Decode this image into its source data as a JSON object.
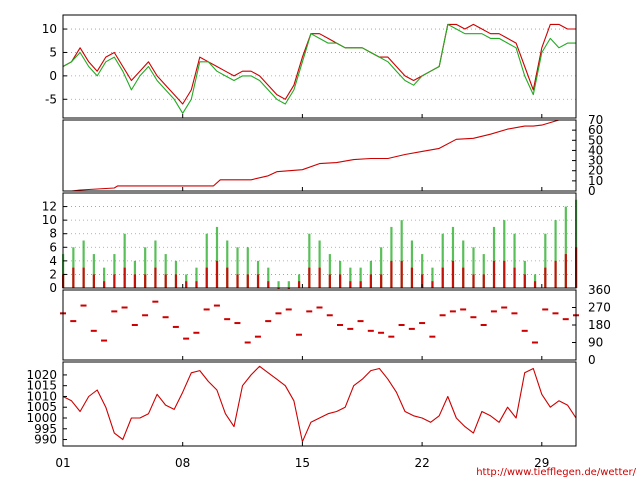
{
  "credit": "http://www.tiefflegen.de/wetter/",
  "x_axis": {
    "min": 1,
    "max": 31,
    "ticks": [
      {
        "value": 1,
        "label": "01"
      },
      {
        "value": 8,
        "label": "08"
      },
      {
        "value": 15,
        "label": "15"
      },
      {
        "value": 22,
        "label": "22"
      },
      {
        "value": 29,
        "label": "29"
      }
    ]
  },
  "colors": {
    "red": "#cc0000",
    "green": "#22aa22"
  },
  "chart_data": [
    {
      "type": "line",
      "panel": "temperature",
      "ylim": [
        -9,
        13
      ],
      "yticks": [
        -5,
        0,
        5,
        10
      ],
      "tick_side": "left",
      "grid": true,
      "series": [
        {
          "color": "red",
          "x": [
            1.0,
            1.5,
            2.0,
            2.5,
            3.0,
            3.5,
            4.0,
            4.5,
            5.0,
            5.5,
            6.0,
            6.5,
            7.0,
            7.5,
            8.0,
            8.5,
            9.0,
            9.5,
            10.0,
            10.5,
            11.0,
            11.5,
            12.0,
            12.5,
            13.0,
            13.5,
            14.0,
            14.5,
            15.0,
            15.5,
            16.0,
            16.5,
            17.0,
            17.5,
            18.0,
            18.5,
            19.0,
            19.5,
            20.0,
            20.5,
            21.0,
            21.5,
            22.0,
            22.5,
            23.0,
            23.5,
            24.0,
            24.5,
            25.0,
            25.5,
            26.0,
            26.5,
            27.0,
            27.5,
            28.0,
            28.5,
            29.0,
            29.5,
            30.0,
            30.5,
            31.0
          ],
          "y": [
            2,
            3,
            6,
            3,
            1,
            4,
            5,
            2,
            -1,
            1,
            3,
            0,
            -2,
            -4,
            -6,
            -3,
            4,
            3,
            2,
            1,
            0,
            1,
            1,
            0,
            -2,
            -4,
            -5,
            -2,
            4,
            9,
            9,
            8,
            7,
            6,
            6,
            6,
            5,
            4,
            4,
            2,
            0,
            -1,
            0,
            1,
            2,
            11,
            11,
            10,
            11,
            10,
            9,
            9,
            8,
            7,
            2,
            -3,
            6,
            11,
            11,
            10,
            10
          ]
        },
        {
          "color": "green",
          "x": [
            1.0,
            1.5,
            2.0,
            2.5,
            3.0,
            3.5,
            4.0,
            4.5,
            5.0,
            5.5,
            6.0,
            6.5,
            7.0,
            7.5,
            8.0,
            8.5,
            9.0,
            9.5,
            10.0,
            10.5,
            11.0,
            11.5,
            12.0,
            12.5,
            13.0,
            13.5,
            14.0,
            14.5,
            15.0,
            15.5,
            16.0,
            16.5,
            17.0,
            17.5,
            18.0,
            18.5,
            19.0,
            19.5,
            20.0,
            20.5,
            21.0,
            21.5,
            22.0,
            22.5,
            23.0,
            23.5,
            24.0,
            24.5,
            25.0,
            25.5,
            26.0,
            26.5,
            27.0,
            27.5,
            28.0,
            28.5,
            29.0,
            29.5,
            30.0,
            30.5,
            31.0
          ],
          "y": [
            2,
            3,
            5,
            2,
            0,
            3,
            4,
            1,
            -3,
            0,
            2,
            -1,
            -3,
            -5,
            -8,
            -5,
            3,
            3,
            1,
            0,
            -1,
            0,
            0,
            -1,
            -3,
            -5,
            -6,
            -3,
            3,
            9,
            8,
            7,
            7,
            6,
            6,
            6,
            5,
            4,
            3,
            1,
            -1,
            -2,
            0,
            1,
            2,
            11,
            10,
            9,
            9,
            9,
            8,
            8,
            7,
            6,
            0,
            -4,
            5,
            8,
            6,
            7,
            7
          ]
        }
      ]
    },
    {
      "type": "line",
      "panel": "precipitation-cumulative",
      "ylim": [
        0,
        70
      ],
      "yticks": [
        0,
        10,
        20,
        30,
        40,
        50,
        60,
        70
      ],
      "tick_side": "right",
      "grid": false,
      "series": [
        {
          "color": "red",
          "x": [
            1.0,
            1.5,
            2.0,
            3.0,
            4.0,
            4.2,
            6.0,
            8.0,
            9.0,
            9.8,
            10.2,
            12.0,
            13.0,
            13.5,
            15.0,
            16.0,
            17.0,
            18.0,
            19.0,
            20.0,
            21.0,
            22.0,
            23.0,
            24.0,
            25.0,
            26.0,
            27.0,
            28.0,
            28.5,
            29.0,
            30.0,
            31.0
          ],
          "y": [
            0,
            0,
            1,
            2,
            3,
            5,
            5,
            5,
            5,
            5,
            11,
            11,
            15,
            19,
            21,
            27,
            28,
            31,
            32,
            32,
            36,
            39,
            42,
            51,
            52,
            56,
            61,
            64,
            64,
            65,
            70,
            70
          ]
        }
      ]
    },
    {
      "type": "scatter",
      "panel": "wind-speed",
      "ylim": [
        0,
        14
      ],
      "yticks": [
        0,
        2,
        4,
        6,
        8,
        10,
        12
      ],
      "tick_side": "left",
      "grid": true,
      "series": [
        {
          "color": "green",
          "x": [
            1.0,
            1.6,
            2.2,
            2.8,
            3.4,
            4.0,
            4.6,
            5.2,
            5.8,
            6.4,
            7.0,
            7.6,
            8.2,
            8.8,
            9.4,
            10.0,
            10.6,
            11.2,
            11.8,
            12.4,
            13.0,
            13.6,
            14.2,
            14.8,
            15.4,
            16.0,
            16.6,
            17.2,
            17.8,
            18.4,
            19.0,
            19.6,
            20.2,
            20.8,
            21.4,
            22.0,
            22.6,
            23.2,
            23.8,
            24.4,
            25.0,
            25.6,
            26.2,
            26.8,
            27.4,
            28.0,
            28.6,
            29.2,
            29.8,
            30.4,
            31.0
          ],
          "y": [
            5,
            6,
            7,
            5,
            3,
            5,
            8,
            4,
            6,
            7,
            5,
            4,
            2,
            3,
            8,
            9,
            7,
            6,
            6,
            4,
            3,
            1,
            1,
            2,
            8,
            7,
            5,
            4,
            3,
            3,
            4,
            6,
            9,
            10,
            7,
            5,
            3,
            8,
            9,
            7,
            6,
            5,
            9,
            10,
            8,
            4,
            2,
            8,
            10,
            12,
            13
          ]
        },
        {
          "color": "red",
          "x": [
            1.0,
            1.6,
            2.2,
            2.8,
            3.4,
            4.0,
            4.6,
            5.2,
            5.8,
            6.4,
            7.0,
            7.6,
            8.2,
            8.8,
            9.4,
            10.0,
            10.6,
            11.2,
            11.8,
            12.4,
            13.0,
            13.6,
            14.2,
            14.8,
            15.4,
            16.0,
            16.6,
            17.2,
            17.8,
            18.4,
            19.0,
            19.6,
            20.2,
            20.8,
            21.4,
            22.0,
            22.6,
            23.2,
            23.8,
            24.4,
            25.0,
            25.6,
            26.2,
            26.8,
            27.4,
            28.0,
            28.6,
            29.2,
            29.8,
            30.4,
            31.0
          ],
          "y": [
            2,
            3,
            3,
            2,
            1,
            2,
            3,
            2,
            2,
            3,
            2,
            2,
            1,
            1,
            3,
            4,
            3,
            2,
            2,
            2,
            1,
            0,
            0,
            1,
            3,
            3,
            2,
            2,
            1,
            1,
            2,
            2,
            4,
            4,
            3,
            2,
            1,
            3,
            4,
            3,
            2,
            2,
            4,
            4,
            3,
            2,
            1,
            3,
            4,
            5,
            6
          ]
        }
      ]
    },
    {
      "type": "scatter",
      "panel": "wind-direction",
      "ylim": [
        0,
        360
      ],
      "yticks": [
        0,
        90,
        180,
        270,
        360
      ],
      "tick_side": "right",
      "grid": false,
      "series": [
        {
          "color": "red",
          "x": [
            1.0,
            1.6,
            2.2,
            2.8,
            3.4,
            4.0,
            4.6,
            5.2,
            5.8,
            6.4,
            7.0,
            7.6,
            8.2,
            8.8,
            9.4,
            10.0,
            10.6,
            11.2,
            11.8,
            12.4,
            13.0,
            13.6,
            14.2,
            14.8,
            15.4,
            16.0,
            16.6,
            17.2,
            17.8,
            18.4,
            19.0,
            19.6,
            20.2,
            20.8,
            21.4,
            22.0,
            22.6,
            23.2,
            23.8,
            24.4,
            25.0,
            25.6,
            26.2,
            26.8,
            27.4,
            28.0,
            28.6,
            29.2,
            29.8,
            30.4,
            31.0
          ],
          "y": [
            240,
            200,
            280,
            150,
            100,
            250,
            270,
            180,
            230,
            300,
            220,
            170,
            110,
            140,
            260,
            280,
            210,
            190,
            90,
            120,
            200,
            240,
            260,
            130,
            250,
            270,
            230,
            180,
            160,
            200,
            150,
            140,
            120,
            180,
            160,
            190,
            120,
            230,
            250,
            260,
            220,
            180,
            250,
            270,
            240,
            150,
            90,
            260,
            240,
            210,
            230
          ]
        }
      ]
    },
    {
      "type": "line",
      "panel": "pressure",
      "ylim": [
        987,
        1026
      ],
      "yticks": [
        990,
        995,
        1000,
        1005,
        1010,
        1015,
        1020
      ],
      "tick_side": "left",
      "grid": false,
      "series": [
        {
          "color": "red",
          "x": [
            1.0,
            1.5,
            2.0,
            2.5,
            3.0,
            3.5,
            4.0,
            4.5,
            5.0,
            5.5,
            6.0,
            6.5,
            7.0,
            7.5,
            8.0,
            8.5,
            9.0,
            9.5,
            10.0,
            10.5,
            11.0,
            11.5,
            12.0,
            12.5,
            13.0,
            13.5,
            14.0,
            14.5,
            15.0,
            15.5,
            16.0,
            16.5,
            17.0,
            17.5,
            18.0,
            18.5,
            19.0,
            19.5,
            20.0,
            20.5,
            21.0,
            21.5,
            22.0,
            22.5,
            23.0,
            23.5,
            24.0,
            24.5,
            25.0,
            25.5,
            26.0,
            26.5,
            27.0,
            27.5,
            28.0,
            28.5,
            29.0,
            29.5,
            30.0,
            30.5,
            31.0
          ],
          "y": [
            1010,
            1008,
            1003,
            1010,
            1013,
            1005,
            993,
            990,
            1000,
            1000,
            1002,
            1011,
            1006,
            1004,
            1012,
            1021,
            1022,
            1017,
            1013,
            1002,
            996,
            1015,
            1020,
            1024,
            1021,
            1018,
            1015,
            1008,
            989,
            998,
            1000,
            1002,
            1003,
            1005,
            1015,
            1018,
            1022,
            1023,
            1018,
            1012,
            1003,
            1001,
            1000,
            998,
            1001,
            1010,
            1000,
            996,
            993,
            1003,
            1001,
            998,
            1005,
            1000,
            1021,
            1023,
            1011,
            1005,
            1008,
            1006,
            1000
          ]
        }
      ]
    }
  ]
}
